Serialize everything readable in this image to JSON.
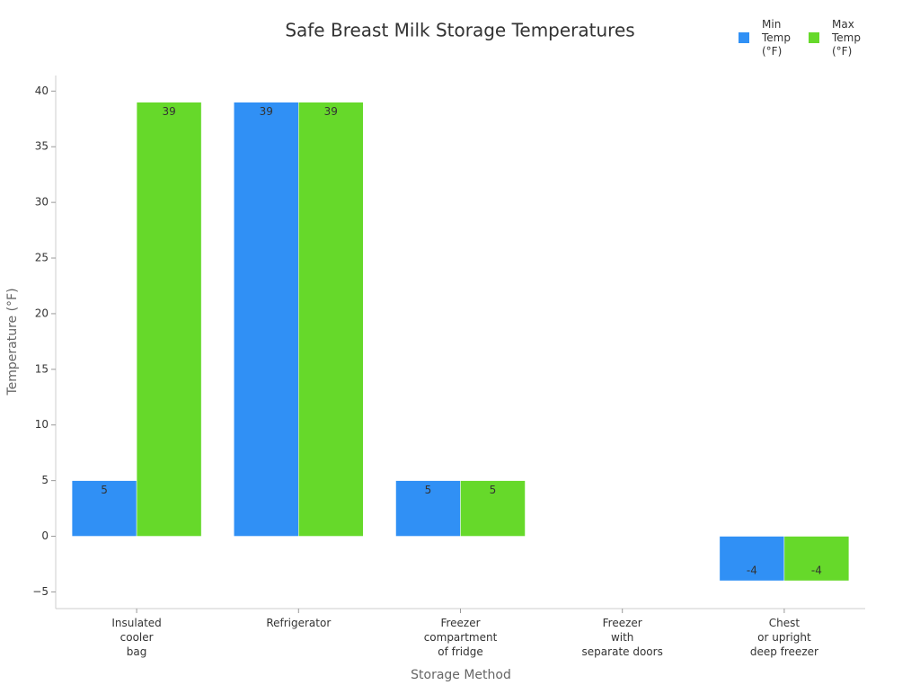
{
  "chart_data": {
    "type": "bar",
    "title": "Safe Breast Milk Storage Temperatures",
    "x_label": "Storage Method",
    "y_label": "Temperature (°F)",
    "categories": [
      [
        "Insulated",
        "cooler",
        "bag"
      ],
      [
        "Refrigerator"
      ],
      [
        "Freezer",
        "compartment",
        "of fridge"
      ],
      [
        "Freezer",
        "with",
        "separate doors"
      ],
      [
        "Chest",
        "or upright",
        "deep freezer"
      ]
    ],
    "series": [
      {
        "name": "Min Temp (°F)",
        "color": "#3090f5",
        "values": [
          5,
          39,
          5,
          null,
          -4
        ]
      },
      {
        "name": "Max Temp (°F)",
        "color": "#66d92a",
        "values": [
          39,
          39,
          5,
          null,
          -4
        ]
      }
    ],
    "ylim": [
      -6.5,
      41.4
    ],
    "yticks": [
      {
        "value": -5,
        "label": "−5"
      },
      0,
      5,
      10,
      15,
      20,
      25,
      30,
      35,
      40
    ],
    "legend": "top-right"
  }
}
